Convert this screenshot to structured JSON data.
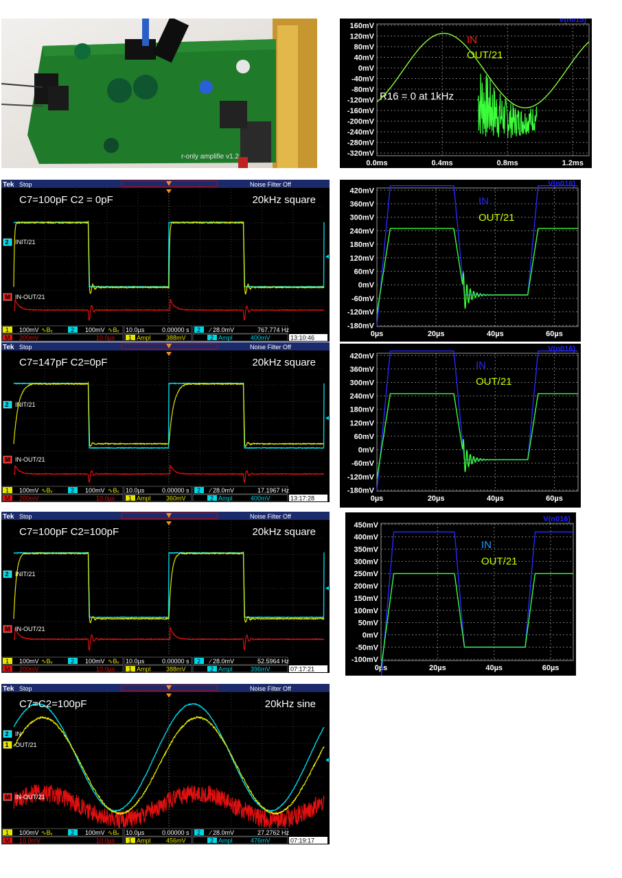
{
  "colors": {
    "scope_yellow": "#e6e600",
    "scope_cyan": "#00d8e8",
    "scope_red": "#e01010",
    "spice_green": "#3bff3b",
    "spice_blue": "#2828ff",
    "spice_in_red": "#ff2020"
  },
  "photo": {
    "description_icon": "pcb-photo",
    "board_text": "r-only amplifie v1.2"
  },
  "spice_plots": [
    {
      "title": "V(n015)",
      "title_color": "#ff2020",
      "legend": [
        {
          "label": "IN",
          "color": "#ff2020"
        },
        {
          "label": "OUT/21",
          "color": "#c8ff00"
        }
      ],
      "annotation": "R16 = 0 at 1kHz",
      "y_ticks": [
        "160mV",
        "120mV",
        "80mV",
        "40mV",
        "0mV",
        "-40mV",
        "-80mV",
        "-120mV",
        "-160mV",
        "-200mV",
        "-240mV",
        "-280mV",
        "-320mV"
      ],
      "x_ticks": [
        "0.0ms",
        "0.4ms",
        "0.8ms",
        "1.2ms"
      ]
    },
    {
      "title": "V(n016)",
      "title_color": "#2222ff",
      "legend": [
        {
          "label": "IN",
          "color": "#2828ff"
        },
        {
          "label": "OUT/21",
          "color": "#c8ff00"
        }
      ],
      "annotation": "",
      "y_ticks": [
        "420mV",
        "360mV",
        "300mV",
        "240mV",
        "180mV",
        "120mV",
        "60mV",
        "0mV",
        "-60mV",
        "-120mV",
        "-180mV"
      ],
      "x_ticks": [
        "0µs",
        "20µs",
        "40µs",
        "60µs"
      ]
    },
    {
      "title": "V(n016)",
      "title_color": "#2222ff",
      "legend": [
        {
          "label": "IN",
          "color": "#2828ff"
        },
        {
          "label": "OUT/21",
          "color": "#c8ff00"
        }
      ],
      "annotation": "",
      "y_ticks": [
        "420mV",
        "360mV",
        "300mV",
        "240mV",
        "180mV",
        "120mV",
        "60mV",
        "0mV",
        "-60mV",
        "-120mV",
        "-180mV"
      ],
      "x_ticks": [
        "0µs",
        "20µs",
        "40µs",
        "60µs"
      ]
    },
    {
      "title": "V(n016)",
      "title_color": "#2222ff",
      "legend": [
        {
          "label": "IN",
          "color": "#1ea0ff"
        },
        {
          "label": "OUT/21",
          "color": "#c8ff00"
        }
      ],
      "annotation": "",
      "y_ticks": [
        "450mV",
        "400mV",
        "350mV",
        "300mV",
        "250mV",
        "200mV",
        "150mV",
        "100mV",
        "50mV",
        "0mV",
        "-50mV",
        "-100mV"
      ],
      "x_ticks": [
        "0µs",
        "20µs",
        "40µs",
        "60µs"
      ]
    }
  ],
  "scopes": [
    {
      "brand": "Tek",
      "status": "Stop",
      "filter": "Noise Filter Off",
      "caption_left": "C7=100pF C2 = 0pF",
      "caption_right": "20kHz square",
      "ch_labels": [
        {
          "marker": "2",
          "text": "INIT/21",
          "color": "#00d8e8"
        },
        {
          "marker": "M",
          "text": "IN-OUT/21",
          "color": "#e01010"
        }
      ],
      "row1": [
        "1",
        "100mV",
        "∿Bᵥ",
        "2",
        "100mV",
        "∿Bᵥ",
        "10.0µs",
        "0.00000 s",
        "2",
        "∕ 28.0mV",
        "767.774 Hz"
      ],
      "row2": [
        "M",
        "200mV",
        "10.0µs",
        "1",
        "Ampl",
        "388mV",
        "2",
        "Ampl",
        "400mV",
        "13:10:46"
      ]
    },
    {
      "brand": "Tek",
      "status": "Stop",
      "filter": "Noise Filter Off",
      "caption_left": "C7=147pF C2=0pF",
      "caption_right": "20kHz square",
      "ch_labels": [
        {
          "marker": "2",
          "text": "INIT/21",
          "color": "#00d8e8"
        },
        {
          "marker": "M",
          "text": "IN-OUT/21",
          "color": "#e01010"
        }
      ],
      "row1": [
        "1",
        "100mV",
        "∿Bᵥ",
        "2",
        "100mV",
        "∿Bᵥ",
        "10.0µs",
        "0.00000 s",
        "2",
        "∕ 28.0mV",
        "17.1967 Hz"
      ],
      "row2": [
        "M",
        "200mV",
        "10.0µs",
        "1",
        "Ampl",
        "360mV",
        "2",
        "Ampl",
        "400mV",
        "13:17:28"
      ]
    },
    {
      "brand": "Tek",
      "status": "Stop",
      "filter": "Noise Filter Off",
      "caption_left": "C7=100pF C2=100pF",
      "caption_right": "20kHz square",
      "ch_labels": [
        {
          "marker": "2",
          "text": "INIT/21",
          "color": "#00d8e8"
        },
        {
          "marker": "M",
          "text": "IN-OUT/21",
          "color": "#e01010"
        }
      ],
      "row1": [
        "1",
        "100mV",
        "∿Bᵥ",
        "2",
        "100mV",
        "∿Bᵥ",
        "10.0µs",
        "0.00000 s",
        "2",
        "∕ 28.0mV",
        "52.5964 Hz"
      ],
      "row2": [
        "M",
        "200mV",
        "10.0µs",
        "1",
        "Ampl",
        "388mV",
        "2",
        "Ampl",
        "396mV",
        "07:17:21"
      ]
    },
    {
      "brand": "Tek",
      "status": "Stop",
      "filter": "Noise Filter Off",
      "caption_left": "C7=C2=100pF",
      "caption_right": "20kHz sine",
      "ch_labels": [
        {
          "marker": "2",
          "text": "IN",
          "color": "#00d8e8"
        },
        {
          "marker": "1",
          "text": "OUT/21",
          "color": "#e6e600"
        },
        {
          "marker": "M",
          "text": "IN-OUT/21",
          "color": "#e01010"
        }
      ],
      "row1": [
        "1",
        "100mV",
        "∿Bᵥ",
        "2",
        "100mV",
        "∿Bᵥ",
        "10.0µs",
        "0.00000 s",
        "2",
        "∕ 28.0mV",
        "27.2762 Hz"
      ],
      "row2": [
        "M",
        "10.0mV",
        "10.0µs",
        "1",
        "Ampl",
        "456mV",
        "2",
        "Ampl",
        "476mV",
        "07:19:17"
      ]
    }
  ],
  "chart_data": [
    {
      "type": "line",
      "title": "V(n015)",
      "series": [
        {
          "name": "IN"
        },
        {
          "name": "OUT/21"
        }
      ],
      "xlim": [
        0,
        1.3
      ],
      "ylim": [
        -330,
        165
      ],
      "x_unit": "ms",
      "y_unit": "mV",
      "note": "R16 = 0 at 1kHz"
    },
    {
      "type": "line",
      "title": "V(n016)",
      "series": [
        {
          "name": "IN"
        },
        {
          "name": "OUT/21"
        }
      ],
      "xlim": [
        0,
        68
      ],
      "ylim": [
        -185,
        430
      ],
      "x_unit": "µs",
      "y_unit": "mV"
    },
    {
      "type": "line",
      "title": "V(n016)",
      "series": [
        {
          "name": "IN"
        },
        {
          "name": "OUT/21"
        }
      ],
      "xlim": [
        0,
        68
      ],
      "ylim": [
        -185,
        430
      ],
      "x_unit": "µs",
      "y_unit": "mV"
    },
    {
      "type": "line",
      "title": "V(n016)",
      "series": [
        {
          "name": "IN"
        },
        {
          "name": "OUT/21"
        }
      ],
      "xlim": [
        0,
        68
      ],
      "ylim": [
        -105,
        455
      ],
      "x_unit": "µs",
      "y_unit": "mV"
    }
  ]
}
